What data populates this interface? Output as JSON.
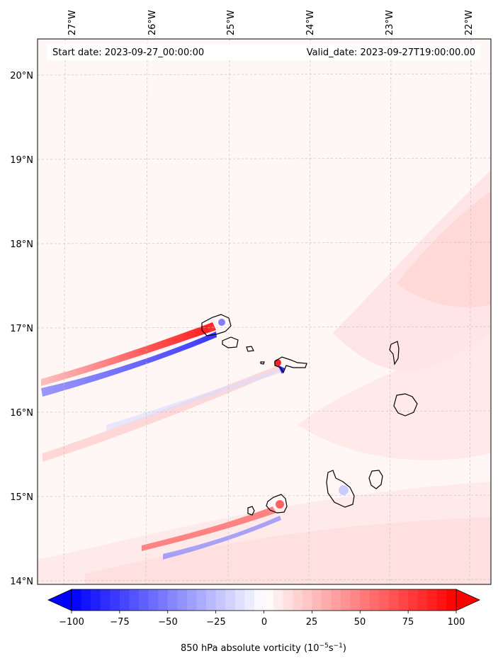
{
  "map": {
    "start_label": "Start date: 2023-09-27_00:00:00",
    "valid_label": "Valid_date: 2023-09-27T19:00:00.00",
    "lon_labels": [
      "27°W",
      "26°W",
      "25°W",
      "24°W",
      "23°W",
      "22°W"
    ],
    "lat_labels": [
      "20°N",
      "19°N",
      "18°N",
      "17°N",
      "16°N",
      "15°N",
      "14°N"
    ],
    "extent": {
      "lon_min": -27.3,
      "lon_max": -21.7,
      "lat_min": 13.95,
      "lat_max": 20.45
    }
  },
  "colorbar": {
    "ticks": [
      "−100",
      "−75",
      "−50",
      "−25",
      "0",
      "25",
      "50",
      "75",
      "100"
    ],
    "label_main": "850 hPa absolute vorticity (10",
    "label_exp1": "−5",
    "label_mid": "s",
    "label_exp2": "−1",
    "label_end": ")",
    "min": -100,
    "max": 100,
    "levels": 41,
    "colors": {
      "low": "#0000ff",
      "mid": "#ffffff",
      "high": "#ff0000"
    }
  }
}
